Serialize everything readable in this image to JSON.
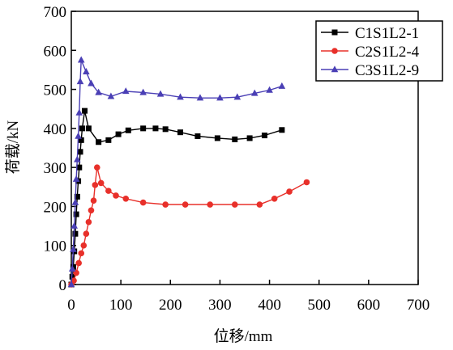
{
  "chart_data": {
    "type": "line",
    "title": "",
    "xlabel": "位移/mm",
    "ylabel": "荷载/kN",
    "xlim": [
      0,
      700
    ],
    "ylim": [
      0,
      700
    ],
    "xticks": [
      0,
      100,
      200,
      300,
      400,
      500,
      600,
      700
    ],
    "yticks": [
      0,
      100,
      200,
      300,
      400,
      500,
      600,
      700
    ],
    "grid": false,
    "legend_position": "top-right",
    "series": [
      {
        "name": "C1S1L2-1",
        "color": "#000000",
        "marker": "square",
        "points": [
          [
            0,
            0
          ],
          [
            2,
            20
          ],
          [
            4,
            45
          ],
          [
            6,
            85
          ],
          [
            8,
            130
          ],
          [
            10,
            180
          ],
          [
            12,
            225
          ],
          [
            14,
            265
          ],
          [
            16,
            300
          ],
          [
            18,
            340
          ],
          [
            20,
            370
          ],
          [
            22,
            400
          ],
          [
            27,
            445
          ],
          [
            35,
            400
          ],
          [
            55,
            365
          ],
          [
            75,
            370
          ],
          [
            95,
            385
          ],
          [
            115,
            395
          ],
          [
            145,
            400
          ],
          [
            170,
            400
          ],
          [
            190,
            398
          ],
          [
            220,
            390
          ],
          [
            255,
            380
          ],
          [
            295,
            375
          ],
          [
            330,
            372
          ],
          [
            360,
            375
          ],
          [
            390,
            382
          ],
          [
            425,
            396
          ]
        ]
      },
      {
        "name": "C2S1L2-4",
        "color": "#e8302a",
        "marker": "circle",
        "points": [
          [
            0,
            0
          ],
          [
            5,
            10
          ],
          [
            10,
            30
          ],
          [
            15,
            55
          ],
          [
            20,
            80
          ],
          [
            25,
            100
          ],
          [
            30,
            130
          ],
          [
            35,
            160
          ],
          [
            40,
            190
          ],
          [
            45,
            215
          ],
          [
            48,
            255
          ],
          [
            52,
            300
          ],
          [
            60,
            260
          ],
          [
            75,
            240
          ],
          [
            90,
            228
          ],
          [
            110,
            220
          ],
          [
            145,
            210
          ],
          [
            190,
            205
          ],
          [
            230,
            205
          ],
          [
            280,
            205
          ],
          [
            330,
            205
          ],
          [
            380,
            205
          ],
          [
            410,
            220
          ],
          [
            440,
            238
          ],
          [
            475,
            262
          ]
        ]
      },
      {
        "name": "C3S1L2-9",
        "color": "#4a3fb5",
        "marker": "triangle",
        "points": [
          [
            0,
            0
          ],
          [
            2,
            40
          ],
          [
            4,
            90
          ],
          [
            6,
            150
          ],
          [
            8,
            210
          ],
          [
            10,
            270
          ],
          [
            12,
            320
          ],
          [
            14,
            380
          ],
          [
            16,
            440
          ],
          [
            18,
            520
          ],
          [
            20,
            575
          ],
          [
            30,
            545
          ],
          [
            40,
            515
          ],
          [
            55,
            492
          ],
          [
            80,
            482
          ],
          [
            110,
            495
          ],
          [
            145,
            492
          ],
          [
            180,
            488
          ],
          [
            220,
            480
          ],
          [
            260,
            478
          ],
          [
            300,
            478
          ],
          [
            335,
            480
          ],
          [
            370,
            490
          ],
          [
            400,
            498
          ],
          [
            425,
            508
          ]
        ]
      }
    ]
  }
}
